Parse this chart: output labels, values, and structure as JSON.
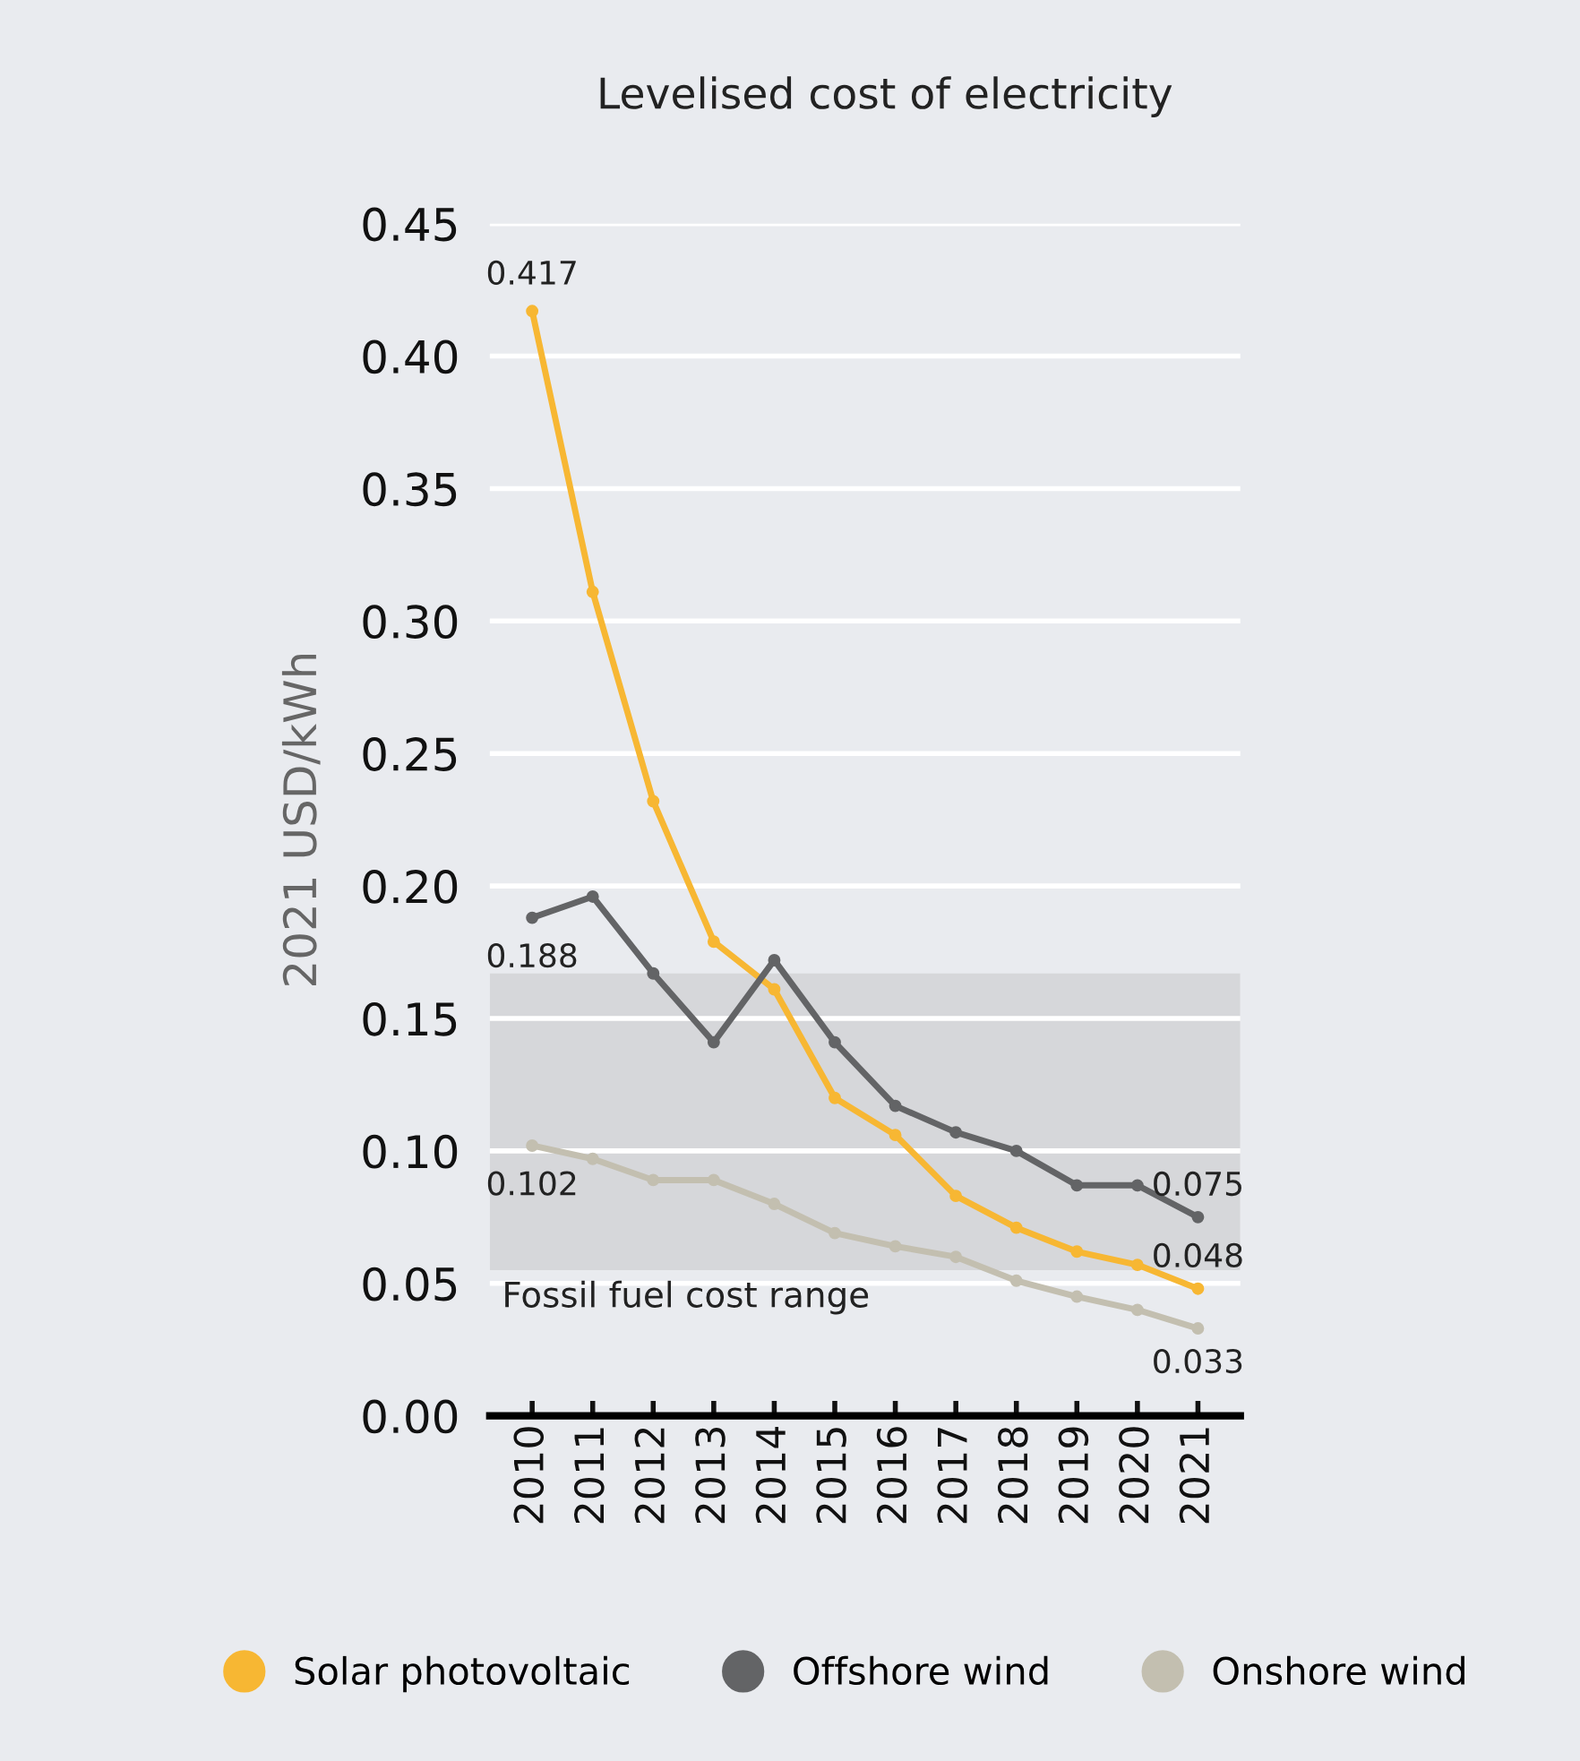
{
  "chart_data": {
    "type": "line",
    "title": "Levelised cost of electricity",
    "ylabel": "2021 USD/kWh",
    "categories": [
      "2010",
      "2011",
      "2012",
      "2013",
      "2014",
      "2015",
      "2016",
      "2017",
      "2018",
      "2019",
      "2020",
      "2021"
    ],
    "series": [
      {
        "name": "Solar photovoltaic",
        "color": "#f7b733",
        "values": [
          0.417,
          0.311,
          0.232,
          0.179,
          0.161,
          0.12,
          0.106,
          0.083,
          0.071,
          0.062,
          0.057,
          0.048
        ],
        "value_labels": [
          "0.417",
          null,
          null,
          null,
          null,
          null,
          null,
          null,
          null,
          null,
          null,
          "0.048"
        ]
      },
      {
        "name": "Offshore wind",
        "color": "#636466",
        "values": [
          0.188,
          0.196,
          0.167,
          0.141,
          0.172,
          0.141,
          0.117,
          0.107,
          0.1,
          0.087,
          0.087,
          0.075
        ],
        "value_labels": [
          "0.188",
          null,
          null,
          null,
          null,
          null,
          null,
          null,
          null,
          null,
          null,
          "0.075"
        ]
      },
      {
        "name": "Onshore wind",
        "color": "#c3bfb0",
        "values": [
          0.102,
          0.097,
          0.089,
          0.089,
          0.08,
          0.069,
          0.064,
          0.06,
          0.051,
          0.045,
          0.04,
          0.033
        ],
        "value_labels": [
          "0.102",
          null,
          null,
          null,
          null,
          null,
          null,
          null,
          null,
          null,
          null,
          "0.033"
        ]
      }
    ],
    "ylim": [
      0,
      0.45
    ],
    "yticks": [
      {
        "value": 0,
        "label": "0.00"
      },
      {
        "value": 0.05,
        "label": "0.05"
      },
      {
        "value": 0.1,
        "label": "0.10"
      },
      {
        "value": 0.15,
        "label": "0.15"
      },
      {
        "value": 0.2,
        "label": "0.20"
      },
      {
        "value": 0.25,
        "label": "0.25"
      },
      {
        "value": 0.3,
        "label": "0.30"
      },
      {
        "value": 0.35,
        "label": "0.35"
      },
      {
        "value": 0.4,
        "label": "0.40"
      },
      {
        "value": 0.45,
        "label": "0.45"
      }
    ],
    "bands": [
      {
        "axis": "y",
        "from": 0.055,
        "to": 0.167,
        "label": "Fossil fuel cost range",
        "color": "#d6d7da"
      }
    ],
    "grid": "y",
    "legend": "bottom",
    "marker": "circle",
    "line_style": "solid"
  }
}
